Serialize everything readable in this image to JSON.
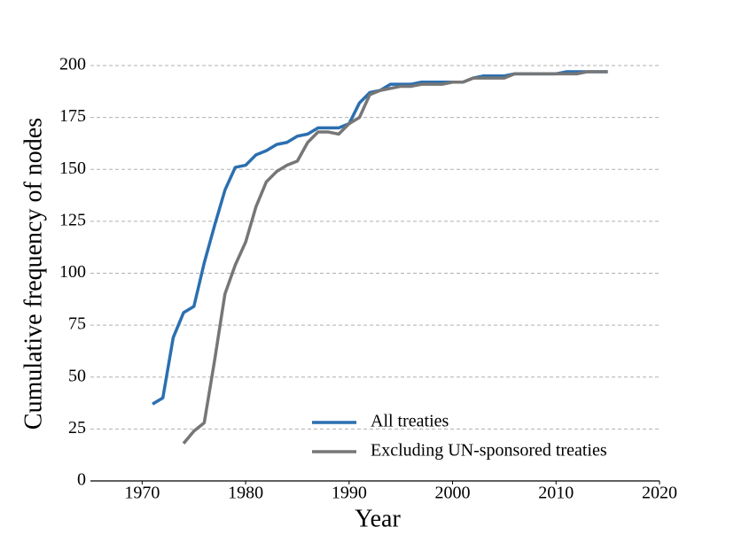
{
  "chart_data": {
    "type": "line",
    "x_label": "Year",
    "y_label": "Cumulative frequency of nodes",
    "x": [
      1971,
      1972,
      1973,
      1974,
      1975,
      1976,
      1977,
      1978,
      1979,
      1980,
      1981,
      1982,
      1983,
      1984,
      1985,
      1986,
      1987,
      1988,
      1989,
      1990,
      1991,
      1992,
      1993,
      1994,
      1995,
      1996,
      1997,
      1998,
      1999,
      2000,
      2001,
      2002,
      2003,
      2004,
      2005,
      2006,
      2007,
      2008,
      2009,
      2010,
      2011,
      2012,
      2013,
      2014,
      2015
    ],
    "series": [
      {
        "name": "All treaties",
        "color": "#2b6fb0",
        "values": [
          37,
          40,
          69,
          81,
          84,
          105,
          123,
          140,
          151,
          152,
          157,
          159,
          162,
          163,
          166,
          167,
          170,
          170,
          170,
          172,
          182,
          187,
          188,
          191,
          191,
          191,
          192,
          192,
          192,
          192,
          192,
          194,
          195,
          195,
          195,
          196,
          196,
          196,
          196,
          196,
          197,
          197,
          197,
          197,
          197
        ]
      },
      {
        "name": "Excluding UN-sponsored treaties",
        "color": "#767676",
        "values": [
          null,
          null,
          null,
          18,
          24,
          28,
          58,
          90,
          104,
          115,
          132,
          144,
          149,
          152,
          154,
          163,
          168,
          168,
          167,
          172,
          175,
          186,
          188,
          189,
          190,
          190,
          191,
          191,
          191,
          192,
          192,
          194,
          194,
          194,
          194,
          196,
          196,
          196,
          196,
          196,
          196,
          196,
          197,
          197,
          197
        ]
      }
    ],
    "xlim": [
      1965,
      2020
    ],
    "xticks": [
      1970,
      1980,
      1990,
      2000,
      2010,
      2020
    ],
    "ylim": [
      0,
      200
    ],
    "yticks": [
      0,
      25,
      50,
      75,
      100,
      125,
      150,
      175,
      200
    ],
    "grid": true,
    "legend": "lower right"
  }
}
